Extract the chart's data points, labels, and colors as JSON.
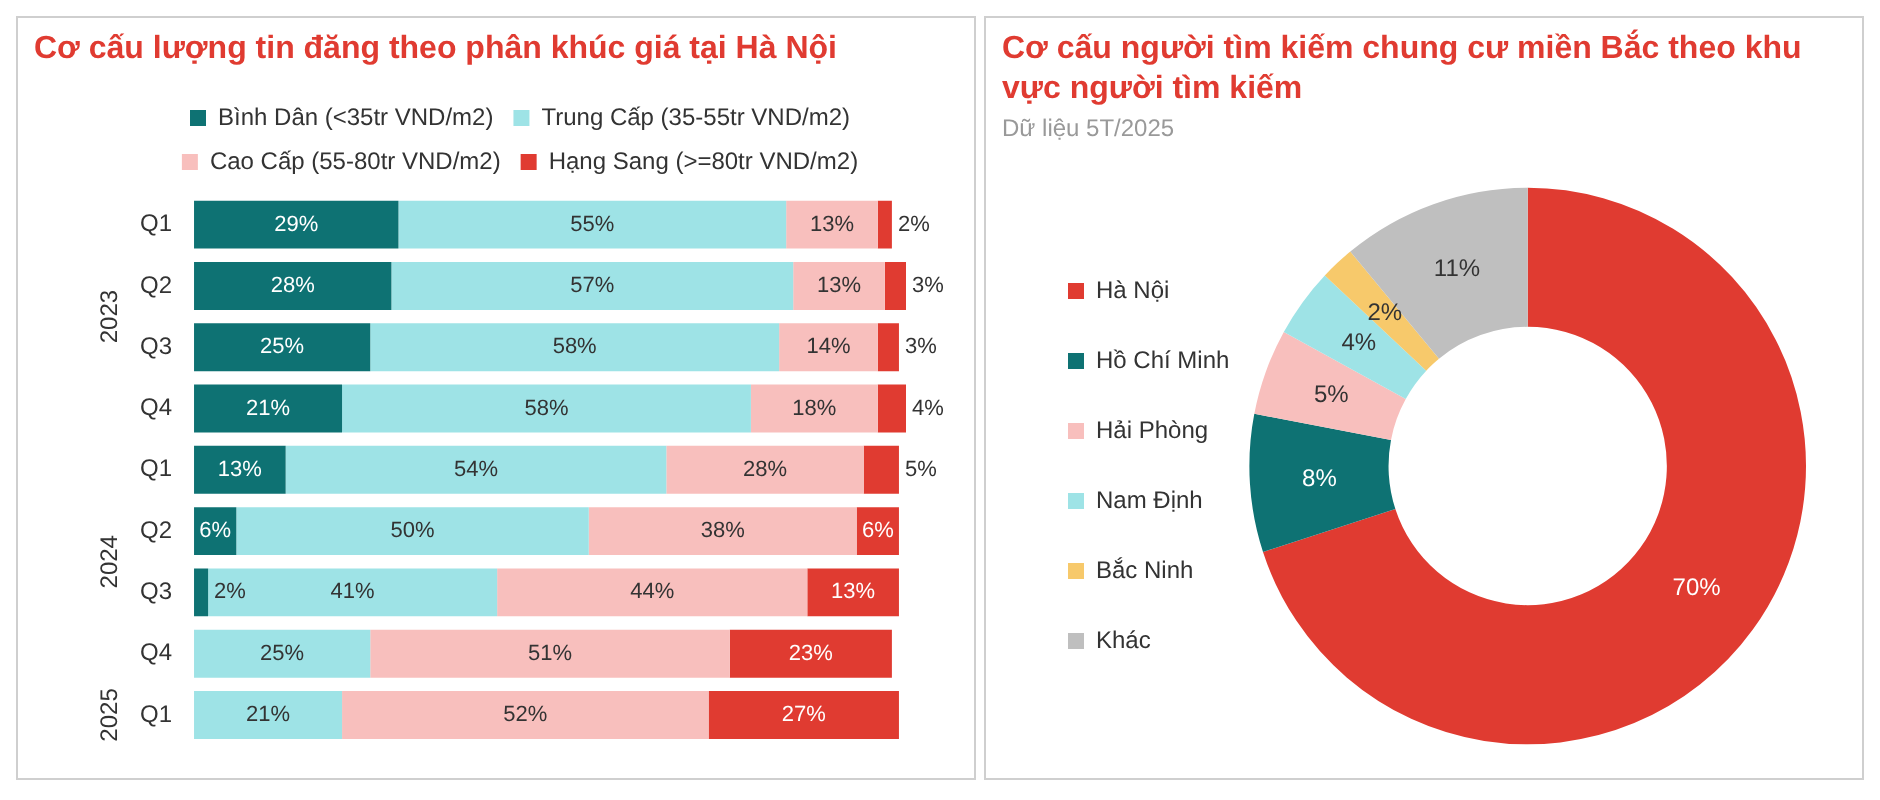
{
  "chart_data": [
    {
      "type": "bar",
      "orientation": "horizontal",
      "stacked": true,
      "title": "Cơ cấu lượng tin đăng theo phân khúc giá tại Hà Nội",
      "categories": [
        "Q1",
        "Q2",
        "Q3",
        "Q4",
        "Q1",
        "Q2",
        "Q3",
        "Q4",
        "Q1"
      ],
      "annotations": [
        "2023",
        "2024",
        "2025"
      ],
      "series": [
        {
          "name": "Bình Dân (<35tr VND/m2)",
          "color": "#0e7273",
          "values": [
            29,
            28,
            25,
            21,
            13,
            6,
            2,
            null,
            null
          ],
          "value_labels": [
            "29%",
            "28%",
            "25%",
            "21%",
            "13%",
            "6%",
            "2%",
            null,
            null
          ]
        },
        {
          "name": "Trung Cấp (35-55tr VND/m2)",
          "color": "#9ee3e6",
          "values": [
            55,
            57,
            58,
            58,
            54,
            50,
            41,
            25,
            21
          ],
          "value_labels": [
            "55%",
            "57%",
            "58%",
            "58%",
            "54%",
            "50%",
            "41%",
            "25%",
            "21%"
          ]
        },
        {
          "name": "Cao Cấp (55-80tr VND/m2)",
          "color": "#f8bfbd",
          "values": [
            13,
            13,
            14,
            18,
            28,
            38,
            44,
            51,
            52
          ],
          "value_labels": [
            "13%",
            "13%",
            "14%",
            "18%",
            "28%",
            "38%",
            "44%",
            "51%",
            "52%"
          ]
        },
        {
          "name": "Hạng Sang (>=80tr VND/m2)",
          "color": "#e03b31",
          "values": [
            2,
            3,
            3,
            4,
            5,
            6,
            13,
            23,
            27
          ],
          "value_labels": [
            "2%",
            "3%",
            "3%",
            "4%",
            "5%",
            "6%",
            "13%",
            "23%",
            "27%"
          ]
        }
      ],
      "legend": "top"
    },
    {
      "type": "donut",
      "title": "Cơ cấu người tìm kiếm chung cư miền Bắc theo khu vực người tìm kiếm",
      "subtitle": "Dữ liệu 5T/2025",
      "categories": [
        "Hà Nội",
        "Hồ Chí Minh",
        "Hải Phòng",
        "Nam Định",
        "Bắc Ninh",
        "Khác"
      ],
      "values": [
        70,
        8,
        5,
        4,
        2,
        11
      ],
      "value_labels": [
        "70%",
        "8%",
        "5%",
        "4%",
        "2%",
        "11%"
      ],
      "colors": [
        "#e03b31",
        "#0e7273",
        "#f8bfbd",
        "#9ee3e6",
        "#f7c96b",
        "#bfbfbf"
      ],
      "legend": "left"
    }
  ]
}
